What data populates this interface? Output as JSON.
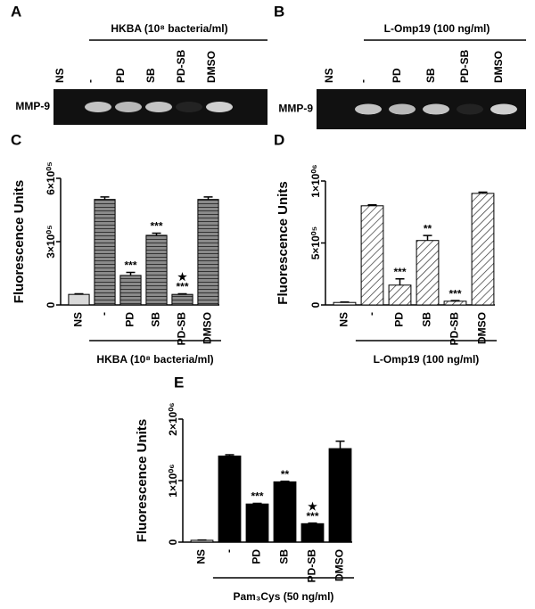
{
  "gels": [
    {
      "panel": "A",
      "title": "HKBA (10⁸ bacteria/ml)",
      "row_label": "MMP-9",
      "lanes": [
        "NS",
        "-",
        "PD",
        "SB",
        "PD-SB",
        "DMSO"
      ]
    },
    {
      "panel": "B",
      "title": "L-Omp19 (100 ng/ml)",
      "row_label": "MMP-9",
      "lanes": [
        "NS",
        "-",
        "PD",
        "SB",
        "PD-SB",
        "DMSO"
      ]
    }
  ],
  "chart_data": [
    {
      "type": "bar",
      "panel": "C",
      "ylabel": "Fluorescence Units",
      "xlabel": "HKBA (10⁸ bacteria/ml)",
      "categories": [
        "NS",
        "-",
        "PD",
        "SB",
        "PD-SB",
        "DMSO"
      ],
      "values": [
        50000,
        500000,
        140000,
        330000,
        50000,
        500000
      ],
      "errors": [
        3000,
        12000,
        14000,
        10000,
        3000,
        12000
      ],
      "significance": [
        null,
        null,
        "***",
        "***",
        "***",
        null
      ],
      "stars": [
        null,
        null,
        null,
        null,
        "★",
        null
      ],
      "colors": [
        "#d9d9d9",
        "#7a7a7a",
        "#7a7a7a",
        "#7a7a7a",
        "#7a7a7a",
        "#7a7a7a"
      ],
      "pattern": "horizontal",
      "ylim": [
        0,
        600000
      ],
      "yticks": [
        0,
        {
          "value": 300000,
          "label": "3×10⁰⁵"
        },
        {
          "value": 600000,
          "label": "6×10⁰⁵"
        }
      ]
    },
    {
      "type": "bar",
      "panel": "D",
      "ylabel": "Fluorescence Units",
      "xlabel": "L-Omp19 (100 ng/ml)",
      "categories": [
        "NS",
        "-",
        "PD",
        "SB",
        "PD-SB",
        "DMSO"
      ],
      "values": [
        20000,
        800000,
        160000,
        520000,
        30000,
        900000
      ],
      "errors": [
        3000,
        8000,
        50000,
        40000,
        5000,
        10000
      ],
      "significance": [
        null,
        null,
        "***",
        "**",
        "***",
        null
      ],
      "stars": [
        null,
        null,
        null,
        null,
        null,
        null
      ],
      "colors": [
        "#ffffff",
        "#ffffff",
        "#ffffff",
        "#ffffff",
        "#ffffff",
        "#ffffff"
      ],
      "pattern": "diagonal",
      "ylim": [
        0,
        1000000
      ],
      "yticks": [
        0,
        {
          "value": 500000,
          "label": "5×10⁰⁵"
        },
        {
          "value": 1000000,
          "label": "1×10⁰⁶"
        }
      ]
    },
    {
      "type": "bar",
      "panel": "E",
      "ylabel": "Fluorescence Units",
      "xlabel": "Pam₃Cys (50 ng/ml)",
      "categories": [
        "NS",
        "-",
        "PD",
        "SB",
        "PD-SB",
        "DMSO"
      ],
      "values": [
        30000,
        1400000,
        620000,
        980000,
        300000,
        1520000
      ],
      "errors": [
        5000,
        20000,
        10000,
        10000,
        10000,
        120000
      ],
      "significance": [
        null,
        null,
        "***",
        "**",
        "***",
        null
      ],
      "stars": [
        null,
        null,
        null,
        null,
        "★",
        null
      ],
      "colors": [
        "#d9d9d9",
        "#000000",
        "#000000",
        "#000000",
        "#000000",
        "#000000"
      ],
      "pattern": "solid",
      "ylim": [
        0,
        2000000
      ],
      "yticks": [
        0,
        {
          "value": 1000000,
          "label": "1×10⁰⁶"
        },
        {
          "value": 2000000,
          "label": "2×10⁰⁶"
        }
      ]
    }
  ]
}
